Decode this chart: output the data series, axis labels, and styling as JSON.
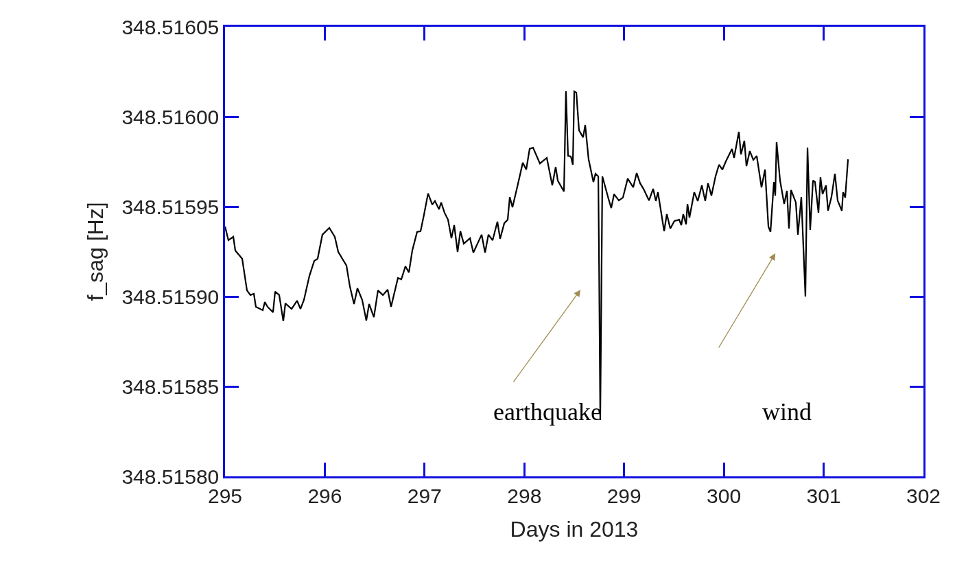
{
  "chart_data": {
    "type": "line",
    "xlabel": "Days in 2013",
    "ylabel": "f_sag [Hz]",
    "xlim": [
      295,
      302
    ],
    "xticks": [
      295,
      296,
      297,
      298,
      299,
      300,
      301,
      302
    ],
    "ylim": [
      348.5158,
      348.51605
    ],
    "yticks": [
      {
        "value": 348.5158,
        "label": "348.51580"
      },
      {
        "value": 348.51585,
        "label": "348.51585"
      },
      {
        "value": 348.5159,
        "label": "348.51590"
      },
      {
        "value": 348.51595,
        "label": "348.51595"
      },
      {
        "value": 348.516,
        "label": "348.51600"
      },
      {
        "value": 348.51605,
        "label": "348.51605"
      }
    ],
    "grid": false,
    "marker": "none",
    "line_style": "solid",
    "annotations": [
      "earthquake",
      "wind"
    ],
    "series": [
      {
        "color": "#000000",
        "x": [
          295.0,
          295.034,
          295.083,
          295.103,
          295.172,
          295.22,
          295.254,
          295.289,
          295.309,
          295.378,
          295.399,
          295.426,
          295.481,
          295.502,
          295.543,
          295.584,
          295.605,
          295.667,
          295.722,
          295.756,
          295.791,
          295.846,
          295.894,
          295.928,
          295.976,
          296.045,
          296.1,
          296.135,
          296.217,
          296.251,
          296.293,
          296.327,
          296.375,
          296.416,
          296.444,
          296.492,
          296.533,
          296.582,
          296.63,
          296.664,
          296.733,
          296.767,
          296.808,
          296.843,
          296.877,
          296.925,
          296.96,
          296.994,
          297.035,
          297.077,
          297.104,
          297.145,
          297.166,
          297.2,
          297.235,
          297.269,
          297.297,
          297.331,
          297.359,
          297.393,
          297.455,
          297.489,
          297.572,
          297.606,
          297.64,
          297.682,
          297.73,
          297.757,
          297.799,
          297.833,
          297.854,
          297.881,
          297.936,
          297.984,
          298.019,
          298.053,
          298.087,
          298.156,
          298.225,
          298.28,
          298.314,
          298.335,
          298.397,
          298.417,
          298.438,
          298.466,
          298.486,
          298.5,
          298.521,
          298.548,
          298.589,
          298.61,
          298.644,
          298.692,
          298.713,
          298.741,
          298.748,
          298.761,
          298.782,
          298.844,
          298.871,
          298.899,
          298.947,
          298.988,
          299.036,
          299.091,
          299.126,
          299.16,
          299.194,
          299.249,
          299.291,
          299.318,
          299.339,
          299.401,
          299.428,
          299.463,
          299.504,
          299.552,
          299.573,
          299.593,
          299.621,
          299.635,
          299.655,
          299.703,
          299.738,
          299.779,
          299.813,
          299.841,
          299.875,
          299.916,
          299.951,
          299.985,
          300.02,
          300.081,
          300.102,
          300.15,
          300.171,
          300.205,
          300.226,
          300.26,
          300.295,
          300.329,
          300.377,
          300.412,
          300.446,
          300.467,
          300.501,
          300.515,
          300.528,
          300.563,
          300.604,
          300.632,
          300.652,
          300.673,
          300.721,
          300.742,
          300.776,
          300.817,
          300.838,
          300.865,
          300.893,
          300.913,
          300.948,
          300.968,
          300.989,
          301.023,
          301.044,
          301.078,
          301.113,
          301.14,
          301.182,
          301.195,
          301.216,
          301.244
        ],
        "values": [
          348.5159389,
          348.5159313,
          348.5159332,
          348.5159256,
          348.515921,
          348.5159034,
          348.5159008,
          348.5159015,
          348.5158943,
          348.5158924,
          348.5158969,
          348.5158943,
          348.5158912,
          348.5159027,
          348.5159008,
          348.5158863,
          348.5158962,
          348.5158931,
          348.5158977,
          348.5158931,
          348.5158981,
          348.5159115,
          348.5159198,
          348.515921,
          348.5159344,
          348.5159382,
          348.5159332,
          348.5159248,
          348.5159172,
          348.5159057,
          348.5158958,
          348.5159046,
          348.5158981,
          348.5158866,
          348.5158958,
          348.5158885,
          348.5159034,
          348.5159008,
          348.5159038,
          348.5158943,
          348.5159103,
          348.5159095,
          348.5159168,
          348.5159134,
          348.5159256,
          348.5159359,
          348.5159363,
          348.5159454,
          348.5159573,
          348.5159511,
          348.5159531,
          348.5159485,
          348.5159523,
          348.5159466,
          348.5159427,
          348.5159324,
          348.5159397,
          348.5159248,
          348.5159363,
          348.5159294,
          348.5159324,
          348.5159244,
          348.5159344,
          348.5159244,
          348.5159344,
          348.5159313,
          348.5159416,
          348.5159321,
          348.5159408,
          348.5159427,
          348.5159553,
          348.5159496,
          348.5159626,
          348.5159744,
          348.5159706,
          348.5159821,
          348.5159828,
          348.515974,
          348.5159771,
          348.5159618,
          348.5159721,
          348.5159645,
          348.5159584,
          348.5160141,
          348.5159782,
          348.5159779,
          348.5159733,
          348.5160141,
          348.5160134,
          348.5159924,
          348.5159885,
          348.5159954,
          348.5159763,
          348.5159637,
          348.5159683,
          348.5159668,
          348.5159244,
          348.5158313,
          348.5159668,
          348.5159542,
          348.5159492,
          348.5159569,
          348.5159534,
          348.515955,
          348.5159656,
          348.5159607,
          348.5159687,
          348.515963,
          348.5159599,
          348.5159534,
          348.5159599,
          348.5159531,
          348.515958,
          348.5159363,
          348.5159458,
          348.5159378,
          348.515942,
          348.5159427,
          348.5159397,
          348.5159458,
          348.5159401,
          348.5159515,
          348.5159439,
          348.515958,
          348.5159531,
          348.5159618,
          348.5159531,
          348.515963,
          348.5159561,
          348.5159668,
          348.5159733,
          348.5159706,
          348.5159752,
          348.5159821,
          348.5159771,
          348.5159916,
          348.515979,
          348.5159866,
          348.5159725,
          348.5159809,
          348.515976,
          348.5159782,
          348.5159607,
          348.5159706,
          348.5159389,
          348.5159359,
          348.5159637,
          348.5159561,
          348.5159859,
          348.5159645,
          348.5159515,
          348.5159588,
          348.5159378,
          348.5159592,
          348.5159523,
          348.5159344,
          348.5159553,
          348.5159,
          348.5159828,
          348.515937,
          348.5159645,
          348.5159637,
          348.5159466,
          348.5159664,
          348.5159569,
          348.5159618,
          348.5159477,
          348.5159553,
          348.5159683,
          348.5159534,
          348.5159477,
          348.515958,
          348.515955,
          348.5159763
        ]
      }
    ]
  }
}
